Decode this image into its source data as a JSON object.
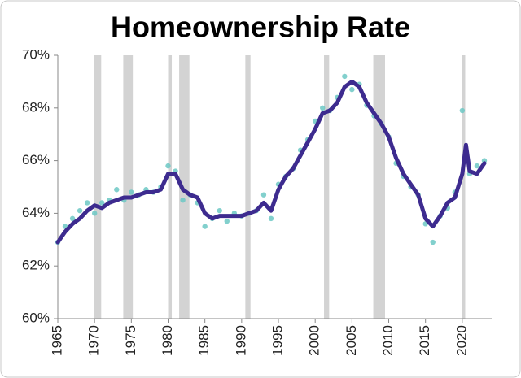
{
  "chart_data": {
    "type": "line",
    "title": "Homeownership Rate",
    "xlim": [
      1965,
      2024
    ],
    "xticks": [
      1965,
      1970,
      1975,
      1980,
      1985,
      1990,
      1995,
      2000,
      2005,
      2010,
      2015,
      2020
    ],
    "ylim": [
      60,
      70
    ],
    "yticks": [
      {
        "value": 60,
        "label": "60%"
      },
      {
        "value": 62,
        "label": "62%"
      },
      {
        "value": 64,
        "label": "64%"
      },
      {
        "value": 66,
        "label": "66%"
      },
      {
        "value": 68,
        "label": "68%"
      },
      {
        "value": 70,
        "label": "70%"
      }
    ],
    "recession_color": "#d3d3d3",
    "recessions": [
      [
        1969.9,
        1970.9
      ],
      [
        1973.9,
        1975.2
      ],
      [
        1980.0,
        1980.5
      ],
      [
        1981.5,
        1982.9
      ],
      [
        1990.5,
        1991.2
      ],
      [
        2001.2,
        2001.9
      ],
      [
        2007.9,
        2009.5
      ],
      [
        2020.0,
        2020.4
      ]
    ],
    "series": [
      {
        "mark": "scatter",
        "color": "#6cc8c4",
        "x": [
          1965,
          1966,
          1967,
          1968,
          1969,
          1970,
          1971,
          1972,
          1973,
          1974,
          1975,
          1976,
          1977,
          1978,
          1979,
          1980,
          1981,
          1982,
          1983,
          1984,
          1985,
          1986,
          1987,
          1988,
          1989,
          1990,
          1991,
          1992,
          1993,
          1994,
          1995,
          1996,
          1997,
          1998,
          1999,
          2000,
          2001,
          2002,
          2003,
          2004,
          2005,
          2006,
          2007,
          2008,
          2009,
          2010,
          2011,
          2012,
          2013,
          2014,
          2015,
          2016,
          2017,
          2018,
          2019,
          2020,
          2021,
          2022,
          2023
        ],
        "values": [
          62.9,
          63.5,
          63.8,
          64.1,
          64.4,
          64.0,
          64.4,
          64.5,
          64.9,
          64.5,
          64.8,
          64.7,
          64.9,
          64.8,
          65.0,
          65.8,
          65.6,
          64.5,
          64.7,
          64.4,
          63.5,
          63.8,
          64.1,
          63.7,
          64.0,
          63.9,
          64.0,
          64.1,
          64.7,
          63.8,
          65.1,
          65.4,
          65.7,
          66.4,
          66.8,
          67.5,
          68.0,
          67.9,
          68.4,
          69.2,
          68.7,
          68.9,
          68.1,
          67.7,
          67.4,
          66.9,
          65.9,
          65.4,
          65.0,
          64.7,
          63.6,
          62.9,
          63.9,
          64.2,
          64.8,
          67.9,
          65.5,
          65.8,
          66.0
        ]
      },
      {
        "mark": "line",
        "color": "#3d2b8f",
        "x": [
          1965,
          1966,
          1967,
          1968,
          1969,
          1970,
          1971,
          1972,
          1973,
          1974,
          1975,
          1976,
          1977,
          1978,
          1979,
          1980,
          1981,
          1982,
          1983,
          1984,
          1985,
          1986,
          1987,
          1988,
          1989,
          1990,
          1991,
          1992,
          1993,
          1994,
          1995,
          1996,
          1997,
          1998,
          1999,
          2000,
          2001,
          2002,
          2003,
          2004,
          2005,
          2006,
          2007,
          2008,
          2009,
          2010,
          2011,
          2012,
          2013,
          2014,
          2015,
          2016,
          2017,
          2018,
          2019,
          2020,
          2020.5,
          2021,
          2022,
          2023
        ],
        "values": [
          62.9,
          63.3,
          63.6,
          63.8,
          64.1,
          64.3,
          64.2,
          64.4,
          64.5,
          64.6,
          64.6,
          64.7,
          64.8,
          64.8,
          64.9,
          65.5,
          65.5,
          64.9,
          64.7,
          64.6,
          64.0,
          63.8,
          63.9,
          63.9,
          63.9,
          63.9,
          64.0,
          64.1,
          64.4,
          64.1,
          64.9,
          65.4,
          65.7,
          66.2,
          66.7,
          67.2,
          67.8,
          67.9,
          68.2,
          68.8,
          69.0,
          68.8,
          68.2,
          67.8,
          67.4,
          66.9,
          66.1,
          65.5,
          65.1,
          64.7,
          63.8,
          63.5,
          63.9,
          64.4,
          64.6,
          65.5,
          66.6,
          65.6,
          65.5,
          65.9
        ]
      }
    ]
  }
}
